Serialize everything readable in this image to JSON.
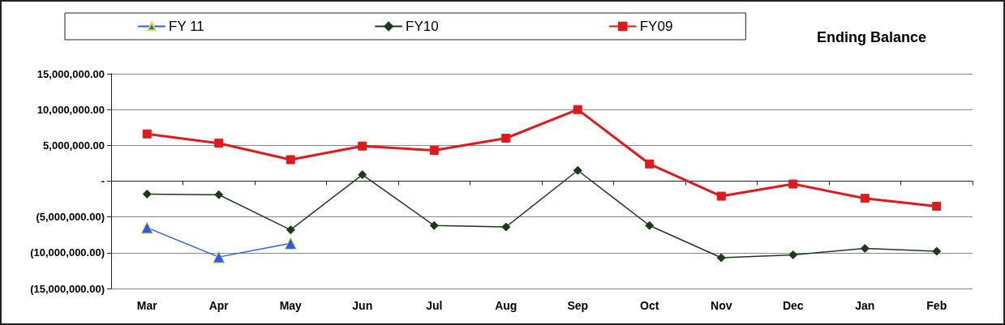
{
  "chart_data": {
    "type": "line",
    "title": "Ending Balance",
    "categories": [
      "Mar",
      "Apr",
      "May",
      "Jun",
      "Jul",
      "Aug",
      "Sep",
      "Oct",
      "Nov",
      "Dec",
      "Jan",
      "Feb"
    ],
    "series": [
      {
        "name": "FY 11",
        "color": "#2a5ee8",
        "marker": "triangle",
        "values": [
          -6500000.0,
          -10600000.0,
          -8700000.0,
          null,
          null,
          null,
          null,
          null,
          null,
          null,
          null,
          null
        ]
      },
      {
        "name": "FY10",
        "color": "#1c3a1c",
        "marker": "diamond",
        "values": [
          -1800000.0,
          -1900000.0,
          -6800000.0,
          900000.0,
          -6200000.0,
          -6400000.0,
          1500000.0,
          -6200000.0,
          -10700000.0,
          -10300000.0,
          -9400000.0,
          -9800000.0
        ]
      },
      {
        "name": "FY09",
        "color": "#e01a1a",
        "marker": "square",
        "values": [
          6600000.0,
          5300000.0,
          3000000.0,
          4900000.0,
          4300000.0,
          6000000.0,
          10000000.0,
          2400000.0,
          -2100000.0,
          -400000.0,
          -2400000.0,
          -3500000.0
        ]
      }
    ],
    "ylim": [
      -15000000,
      15000000
    ],
    "yticks": [
      {
        "value": -15000000,
        "label": "(15,000,000.00)"
      },
      {
        "value": -10000000,
        "label": "(10,000,000.00)"
      },
      {
        "value": -5000000,
        "label": "(5,000,000.00)"
      },
      {
        "value": 0,
        "label": "-"
      },
      {
        "value": 5000000,
        "label": "5,000,000.00"
      },
      {
        "value": 10000000,
        "label": "10,000,000.00"
      },
      {
        "value": 15000000,
        "label": "15,000,000.00"
      }
    ],
    "grid": "y",
    "legend": "top",
    "line_style": "solid"
  }
}
